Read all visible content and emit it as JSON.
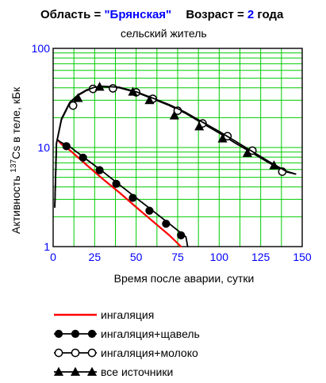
{
  "header": {
    "line1_label_region": "Область = ",
    "line1_value_region": "\"Брянская\"",
    "line1_label_age": "Возраст = ",
    "line1_value_age": "2",
    "line1_unit_age": " года",
    "line2": "сельский  житель"
  },
  "colors": {
    "grid": "#00cc00",
    "axis": "#000000",
    "highlight": "#0000ff",
    "inhalation": "#ff0000",
    "series": "#000000"
  },
  "chart_data": {
    "type": "line",
    "xlabel": "Время после аварии, сутки",
    "ylabel_prefix": "Активность",
    "ylabel_isotope_mass": "137",
    "ylabel_isotope": "Cs в теле, кБк",
    "xlim": [
      0,
      150
    ],
    "ylim": [
      1,
      100
    ],
    "yscale": "log",
    "grid": true,
    "xticks": [
      0,
      25,
      50,
      75,
      100,
      125,
      150
    ],
    "ytick_labels": [
      {
        "value": 1,
        "label": "1"
      },
      {
        "value": 10,
        "label": "10"
      },
      {
        "value": 100,
        "label": "100"
      }
    ],
    "series": [
      {
        "name": "ингаляция",
        "style": "red",
        "x": [
          3,
          5,
          10,
          20,
          30,
          40,
          50,
          60,
          70,
          77
        ],
        "y": [
          11.8,
          10.8,
          9.4,
          6.7,
          4.8,
          3.5,
          2.5,
          1.8,
          1.3,
          1.0
        ]
      },
      {
        "name": "ингаляция+щавель",
        "style": "filled-circle",
        "x": [
          3,
          5,
          10,
          20,
          30,
          40,
          50,
          60,
          70,
          80,
          81
        ],
        "y": [
          11.8,
          11.2,
          10.2,
          7.6,
          5.7,
          4.2,
          3.1,
          2.3,
          1.7,
          1.25,
          1.0
        ],
        "markers_x": [
          8,
          18,
          28,
          38,
          48,
          58,
          68,
          77
        ],
        "markers_y": [
          10.3,
          7.9,
          5.9,
          4.3,
          3.1,
          2.3,
          1.7,
          1.3
        ]
      },
      {
        "name": "ингаляция+молоко",
        "style": "open-circle",
        "x": [
          1,
          2,
          5,
          10,
          15,
          20,
          25,
          30,
          40,
          50,
          60,
          70,
          80,
          90,
          100,
          110,
          120,
          130,
          140,
          146
        ],
        "y": [
          2.5,
          11,
          19,
          28,
          33.5,
          37.5,
          40,
          41,
          40,
          36,
          31,
          26.5,
          22,
          17.5,
          14,
          11,
          8.8,
          7,
          5.7,
          5.4
        ],
        "markers_x": [
          12,
          24,
          36,
          50,
          60,
          75,
          90,
          105,
          120,
          138
        ],
        "markers_y": [
          26.5,
          39,
          39.5,
          36,
          31,
          23.5,
          17.5,
          13,
          9.3,
          5.7
        ]
      },
      {
        "name": "все источники",
        "style": "filled-triangle",
        "x": [
          1,
          2,
          5,
          10,
          15,
          20,
          25,
          30,
          40,
          50,
          60,
          70,
          80,
          90,
          100,
          110,
          120,
          130,
          140,
          146
        ],
        "y": [
          2.5,
          11,
          19.5,
          28.5,
          34,
          38,
          40.5,
          41.5,
          40.5,
          36.5,
          31.5,
          27,
          22.5,
          18,
          14.5,
          11.5,
          9.1,
          7.2,
          5.8,
          5.4
        ],
        "markers_x": [
          15,
          28,
          48,
          58,
          73,
          88,
          102,
          117,
          133
        ],
        "markers_y": [
          31.5,
          41,
          36.5,
          30,
          21,
          16.3,
          12.3,
          8.8,
          6.6
        ]
      }
    ]
  }
}
